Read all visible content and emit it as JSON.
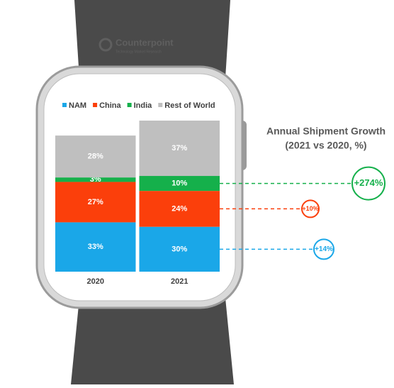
{
  "chart_data": {
    "type": "bar",
    "stacked": true,
    "brand": "Counterpoint",
    "brand_subtitle": "Technology Market Research",
    "categories": [
      "2020",
      "2021"
    ],
    "series": [
      {
        "name": "NAM",
        "color": "#1aa7e8",
        "values": [
          33,
          30
        ],
        "value_labels": [
          "33%",
          "30%"
        ],
        "growth": "+14%"
      },
      {
        "name": "China",
        "color": "#fb3f0b",
        "values": [
          27,
          24
        ],
        "value_labels": [
          "27%",
          "24%"
        ],
        "growth": "+10%"
      },
      {
        "name": "India",
        "color": "#15b04b",
        "values": [
          3,
          10
        ],
        "value_labels": [
          "3%",
          "10%"
        ],
        "growth": "+274%"
      },
      {
        "name": "Rest of World",
        "color": "#bfbfbf",
        "values": [
          28,
          37
        ],
        "value_labels": [
          "28%",
          "37%"
        ]
      }
    ],
    "annotation_title": [
      "Annual Shipment Growth",
      "(2021 vs 2020, %)"
    ]
  }
}
